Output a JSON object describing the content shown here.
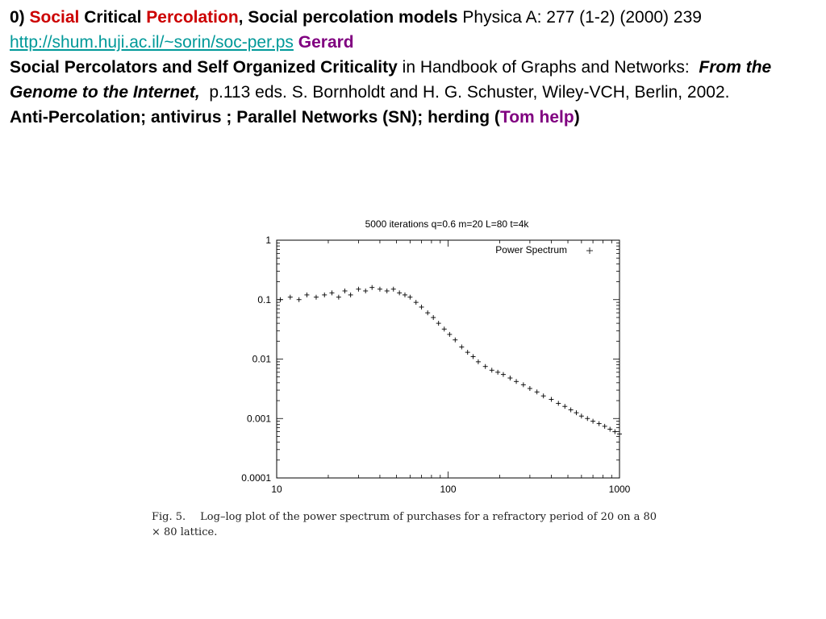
{
  "refs": {
    "line1": {
      "num": "0)",
      "social": "Social",
      "critical": "Critical",
      "percolation": "Percolation",
      "comma_title": ", Social percolation models",
      "journal": "Physica A: 277 (1-2) (2000)",
      "page": "239",
      "url": "http://shum.huji.ac.il/~sorin/soc-per.ps",
      "gerard": "Gerard"
    },
    "line2": {
      "title": "Social Percolators and Self Organized Criticality",
      "in_text": "in Handbook of Graphs and Networks:",
      "book": "From the Genome to the Internet,",
      "eds": "p.113 eds. S. Bornholdt and H. G. Schuster,  Wiley-VCH, Berlin, 2002."
    },
    "line3": {
      "text": "Anti-Percolation; antivirus ;  Parallel Networks (SN); herding (",
      "tom": "Tom help",
      "close": ")"
    }
  },
  "chart_data": {
    "type": "scatter",
    "title": "5000 iterations  q=0.6 m=20 L=80 t=4k",
    "xlabel": "",
    "ylabel": "",
    "xscale": "log",
    "yscale": "log",
    "xlim": [
      10,
      1000
    ],
    "ylim": [
      0.0001,
      1
    ],
    "x_ticks": [
      "10",
      "100",
      "1000"
    ],
    "y_ticks": [
      "1",
      "0.1",
      "0.01",
      "0.001",
      "0.0001"
    ],
    "legend": "top-right",
    "marker": "+",
    "color": "#000000",
    "series": [
      {
        "name": "Power Spectrum",
        "x": [
          10.5,
          12,
          13.5,
          15,
          17,
          19,
          21,
          23,
          25,
          27,
          30,
          33,
          36,
          40,
          44,
          48,
          52,
          56,
          60,
          65,
          70,
          76,
          82,
          88,
          95,
          102,
          110,
          120,
          130,
          140,
          150,
          165,
          180,
          195,
          210,
          230,
          250,
          275,
          300,
          330,
          360,
          400,
          440,
          480,
          520,
          560,
          600,
          650,
          700,
          760,
          820,
          880,
          940,
          1000
        ],
        "y": [
          0.1,
          0.11,
          0.1,
          0.12,
          0.11,
          0.12,
          0.13,
          0.11,
          0.14,
          0.12,
          0.15,
          0.14,
          0.16,
          0.15,
          0.14,
          0.15,
          0.13,
          0.12,
          0.11,
          0.09,
          0.075,
          0.06,
          0.05,
          0.04,
          0.032,
          0.026,
          0.021,
          0.016,
          0.013,
          0.011,
          0.009,
          0.0075,
          0.0065,
          0.006,
          0.0055,
          0.0048,
          0.0042,
          0.0037,
          0.0032,
          0.0028,
          0.0024,
          0.0021,
          0.0018,
          0.0016,
          0.0014,
          0.00125,
          0.0011,
          0.001,
          0.0009,
          0.00082,
          0.00074,
          0.00066,
          0.0006,
          0.00055
        ]
      }
    ]
  },
  "caption": {
    "label": "Fig. 5.",
    "text": "Log–log plot of the power spectrum of purchases for a refractory period of 20 on a 80 × 80 lattice."
  }
}
